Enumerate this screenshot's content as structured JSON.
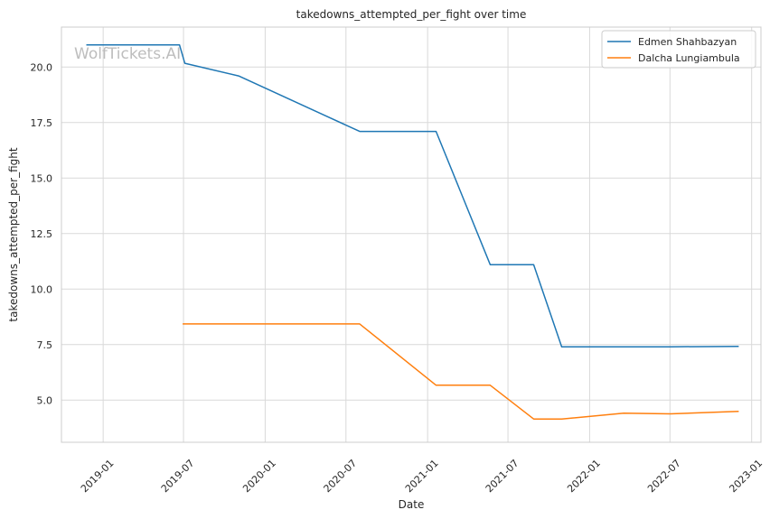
{
  "watermark": "WolfTickets.AI",
  "chart_data": {
    "type": "line",
    "title": "takedowns_attempted_per_fight over time",
    "xlabel": "Date",
    "ylabel": "takedowns_attempted_per_fight",
    "x_ticks": [
      "2019-01",
      "2019-07",
      "2020-01",
      "2020-07",
      "2021-01",
      "2021-07",
      "2022-01",
      "2022-07",
      "2023-01"
    ],
    "y_ticks": [
      "5.0",
      "7.5",
      "10.0",
      "12.5",
      "15.0",
      "17.5",
      "20.0"
    ],
    "ylim": [
      3.1,
      21.8
    ],
    "xlim": [
      "2018-09-29",
      "2023-01-22"
    ],
    "grid": true,
    "legend_position": "top-right",
    "series": [
      {
        "name": "Edmen Shahbazyan",
        "color": "#1f77b4",
        "points": [
          {
            "x": "2018-11-24",
            "y": 21.0
          },
          {
            "x": "2019-06-22",
            "y": 21.0
          },
          {
            "x": "2019-07-04",
            "y": 20.17
          },
          {
            "x": "2019-11-02",
            "y": 19.6
          },
          {
            "x": "2020-08-01",
            "y": 17.1
          },
          {
            "x": "2021-01-20",
            "y": 17.1
          },
          {
            "x": "2021-05-22",
            "y": 11.1
          },
          {
            "x": "2021-08-28",
            "y": 11.1
          },
          {
            "x": "2021-10-30",
            "y": 7.4
          },
          {
            "x": "2022-07-02",
            "y": 7.4
          },
          {
            "x": "2022-12-03",
            "y": 7.42
          }
        ]
      },
      {
        "name": "Dalcha Lungiambula",
        "color": "#ff7f0e",
        "points": [
          {
            "x": "2019-06-29",
            "y": 8.43
          },
          {
            "x": "2020-08-01",
            "y": 8.43
          },
          {
            "x": "2021-01-20",
            "y": 5.67
          },
          {
            "x": "2021-05-22",
            "y": 5.67
          },
          {
            "x": "2021-08-28",
            "y": 4.15
          },
          {
            "x": "2021-10-30",
            "y": 4.15
          },
          {
            "x": "2022-03-19",
            "y": 4.41
          },
          {
            "x": "2022-07-02",
            "y": 4.38
          },
          {
            "x": "2022-12-03",
            "y": 4.49
          }
        ]
      }
    ]
  }
}
